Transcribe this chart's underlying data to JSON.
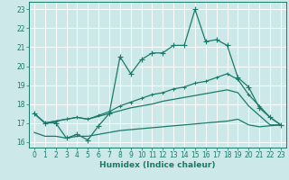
{
  "xlabel": "Humidex (Indice chaleur)",
  "bg_color": "#cce8e8",
  "grid_color": "#ffffff",
  "line_color": "#1a7a6a",
  "xlim": [
    -0.5,
    23.5
  ],
  "ylim": [
    15.7,
    23.4
  ],
  "yticks": [
    16,
    17,
    18,
    19,
    20,
    21,
    22,
    23
  ],
  "xticks": [
    0,
    1,
    2,
    3,
    4,
    5,
    6,
    7,
    8,
    9,
    10,
    11,
    12,
    13,
    14,
    15,
    16,
    17,
    18,
    19,
    20,
    21,
    22,
    23
  ],
  "line1_x": [
    0,
    1,
    2,
    3,
    4,
    5,
    6,
    7,
    8,
    9,
    10,
    11,
    12,
    13,
    14,
    15,
    16,
    17,
    18,
    19,
    20,
    21,
    22,
    23
  ],
  "line1_y": [
    17.5,
    17.0,
    17.0,
    16.2,
    16.4,
    16.1,
    16.85,
    17.5,
    20.5,
    19.6,
    20.35,
    20.7,
    20.7,
    21.1,
    21.1,
    23.0,
    21.3,
    21.4,
    21.1,
    19.4,
    18.9,
    17.8,
    17.3,
    16.9
  ],
  "line2_x": [
    0,
    1,
    2,
    3,
    4,
    5,
    6,
    7,
    8,
    9,
    10,
    11,
    12,
    13,
    14,
    15,
    16,
    17,
    18,
    19,
    20,
    21,
    22,
    23
  ],
  "line2_y": [
    17.5,
    17.0,
    17.1,
    17.2,
    17.3,
    17.2,
    17.4,
    17.6,
    17.9,
    18.1,
    18.3,
    18.5,
    18.6,
    18.8,
    18.9,
    19.1,
    19.2,
    19.4,
    19.6,
    19.3,
    18.5,
    17.9,
    17.3,
    16.9
  ],
  "line3_x": [
    0,
    1,
    2,
    3,
    4,
    5,
    6,
    7,
    8,
    9,
    10,
    11,
    12,
    13,
    14,
    15,
    16,
    17,
    18,
    19,
    20,
    21,
    22,
    23
  ],
  "line3_y": [
    17.5,
    17.0,
    17.1,
    17.2,
    17.3,
    17.2,
    17.35,
    17.5,
    17.65,
    17.8,
    17.9,
    18.0,
    18.15,
    18.25,
    18.35,
    18.45,
    18.55,
    18.65,
    18.75,
    18.6,
    17.9,
    17.4,
    16.9,
    16.9
  ],
  "line4_x": [
    0,
    1,
    2,
    3,
    4,
    5,
    6,
    7,
    8,
    9,
    10,
    11,
    12,
    13,
    14,
    15,
    16,
    17,
    18,
    19,
    20,
    21,
    22,
    23
  ],
  "line4_y": [
    16.5,
    16.3,
    16.3,
    16.2,
    16.3,
    16.3,
    16.4,
    16.5,
    16.6,
    16.65,
    16.7,
    16.75,
    16.8,
    16.85,
    16.9,
    16.95,
    17.0,
    17.05,
    17.1,
    17.2,
    16.9,
    16.8,
    16.85,
    16.9
  ]
}
